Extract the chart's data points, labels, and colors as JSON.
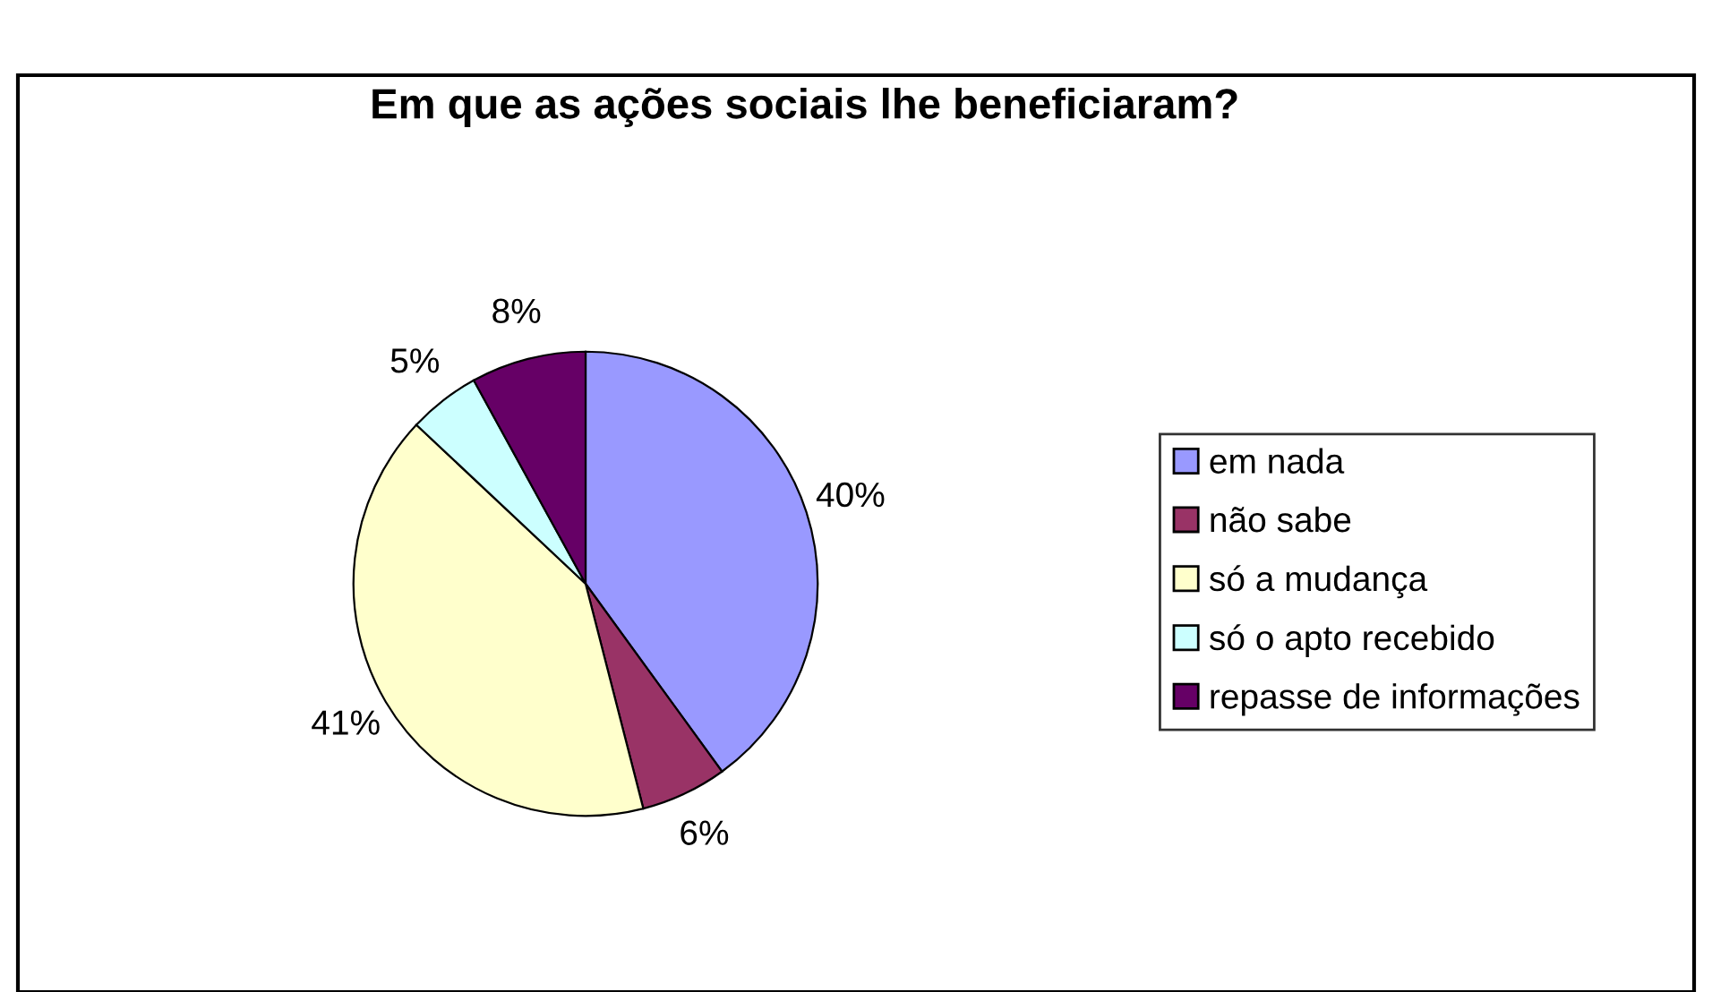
{
  "chart_data": {
    "type": "pie",
    "title": "Em que as ações sociais lhe beneficiaram?",
    "categories": [
      "em nada",
      "não sabe",
      "só a mudança",
      "só o apto recebido",
      "repasse de informações"
    ],
    "values": [
      40,
      6,
      41,
      5,
      8
    ],
    "value_labels": [
      "40%",
      "6%",
      "41%",
      "5%",
      "8%"
    ],
    "colors": [
      "#9999ff",
      "#993366",
      "#ffffcc",
      "#ccffff",
      "#660066"
    ],
    "legend": "right"
  }
}
